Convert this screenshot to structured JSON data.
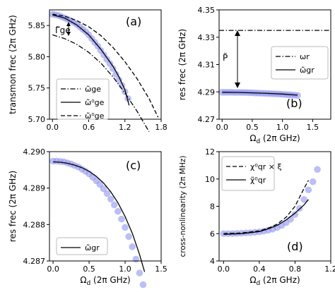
{
  "chart_data": [
    {
      "id": "a",
      "type": "line",
      "panel_label": "(a)",
      "ylabel": "transmon frec (2π GHz)",
      "xlabel": "",
      "xlim": [
        -0.05,
        1.8
      ],
      "ylim": [
        5.7,
        5.875
      ],
      "xticks": [
        0.0,
        0.6,
        1.2,
        1.8
      ],
      "xtick_labels": [
        "0.0",
        "0.6",
        "1.2",
        "1.8"
      ],
      "yticks": [
        5.7,
        5.75,
        5.8,
        5.85
      ],
      "ytick_labels": [
        "5.70",
        "5.75",
        "5.80",
        "5.85"
      ],
      "legend_position": "lower-left",
      "annotation": "Γ̃ge",
      "series": [
        {
          "name": "ω̃ge",
          "style": "dashdot",
          "x": [
            0.0,
            0.2,
            0.4,
            0.6,
            0.8,
            1.0,
            1.2,
            1.4,
            1.6
          ],
          "y": [
            5.835,
            5.829,
            5.82,
            5.807,
            5.79,
            5.768,
            5.742,
            5.713,
            5.68
          ]
        },
        {
          "name": "ω̃⁰ge",
          "style": "solid",
          "x": [
            0.0,
            0.2,
            0.4,
            0.6,
            0.8,
            1.0,
            1.1,
            1.2,
            1.27
          ],
          "y": [
            5.867,
            5.862,
            5.851,
            5.835,
            5.812,
            5.785,
            5.768,
            5.747,
            5.722
          ]
        },
        {
          "name": "ω̃⁰ge",
          "style": "dashed",
          "x": [
            0.0,
            0.2,
            0.4,
            0.6,
            0.8,
            1.0,
            1.2,
            1.4,
            1.6,
            1.75
          ],
          "y": [
            5.868,
            5.865,
            5.858,
            5.848,
            5.834,
            5.815,
            5.792,
            5.765,
            5.733,
            5.703
          ]
        },
        {
          "name": "",
          "style": "markers",
          "x": [
            0.0,
            0.05,
            0.1,
            0.15,
            0.2,
            0.25,
            0.3,
            0.35,
            0.4,
            0.45,
            0.5,
            0.55,
            0.6,
            0.65,
            0.7,
            0.75,
            0.8,
            0.85,
            0.9,
            0.95,
            1.0,
            1.05,
            1.1,
            1.15,
            1.2,
            1.25
          ],
          "y": [
            5.868,
            5.867,
            5.866,
            5.864,
            5.862,
            5.86,
            5.858,
            5.855,
            5.852,
            5.848,
            5.844,
            5.84,
            5.835,
            5.829,
            5.823,
            5.817,
            5.81,
            5.803,
            5.796,
            5.789,
            5.781,
            5.772,
            5.763,
            5.754,
            5.744,
            5.733
          ]
        }
      ]
    },
    {
      "id": "b",
      "type": "line",
      "panel_label": "(b)",
      "ylabel": "res frec (2π GHz)",
      "xlabel": "Ω",
      "xlabel_sub": "d",
      "xlabel_unit": " (2π GHz)",
      "xlim": [
        -0.05,
        1.8
      ],
      "ylim": [
        4.27,
        4.35
      ],
      "xticks": [
        0.0,
        0.5,
        1.0,
        1.5
      ],
      "xtick_labels": [
        "0.0",
        "0.5",
        "1.0",
        "1.5"
      ],
      "yticks": [
        4.27,
        4.29,
        4.31,
        4.33,
        4.35
      ],
      "ytick_labels": [
        "4.27",
        "4.29",
        "4.31",
        "4.33",
        "4.35"
      ],
      "legend_position": "right",
      "annotation": "P̃",
      "series": [
        {
          "name": "ωr",
          "style": "dashdot",
          "x": [
            -0.05,
            1.8
          ],
          "y": [
            4.335,
            4.335
          ]
        },
        {
          "name": "ω̃gr",
          "style": "solid",
          "x": [
            0.0,
            0.25,
            0.5,
            0.75,
            1.0,
            1.25
          ],
          "y": [
            4.2897,
            4.2896,
            4.2893,
            4.2889,
            4.2884,
            4.2876
          ]
        },
        {
          "name": "",
          "style": "markers",
          "x": [
            0.0,
            0.05,
            0.1,
            0.15,
            0.2,
            0.25,
            0.3,
            0.35,
            0.4,
            0.45,
            0.5,
            0.55,
            0.6,
            0.65,
            0.7,
            0.75,
            0.8,
            0.85,
            0.9,
            0.95,
            1.0,
            1.05,
            1.1,
            1.15,
            1.2,
            1.25
          ],
          "y": [
            4.2897,
            4.2897,
            4.2897,
            4.2897,
            4.2896,
            4.2896,
            4.2896,
            4.2895,
            4.2895,
            4.2894,
            4.2893,
            4.2892,
            4.2891,
            4.289,
            4.2889,
            4.2888,
            4.2887,
            4.2886,
            4.2885,
            4.2884,
            4.2882,
            4.2881,
            4.2879,
            4.2878,
            4.2876,
            4.2874
          ]
        }
      ]
    },
    {
      "id": "c",
      "type": "line",
      "panel_label": "(c)",
      "ylabel": "res frec (2π GHz)",
      "xlabel": "Ω",
      "xlabel_sub": "d",
      "xlabel_unit": " (2π GHz)",
      "xlim": [
        -0.05,
        1.5
      ],
      "ylim": [
        4.287,
        4.29
      ],
      "xticks": [
        0.0,
        0.5,
        1.0,
        1.5
      ],
      "xtick_labels": [
        "0.0",
        "0.5",
        "1.0",
        "1.5"
      ],
      "yticks": [
        4.287,
        4.288,
        4.289,
        4.29
      ],
      "ytick_labels": [
        "4.287",
        "4.288",
        "4.289",
        "4.290"
      ],
      "legend_position": "lower-left",
      "series": [
        {
          "name": "ω̃gr",
          "style": "solid",
          "x": [
            0.0,
            0.1,
            0.2,
            0.3,
            0.4,
            0.5,
            0.6,
            0.7,
            0.8,
            0.9,
            1.0,
            1.1,
            1.2,
            1.27
          ],
          "y": [
            4.28972,
            4.28971,
            4.28968,
            4.28963,
            4.28956,
            4.28946,
            4.28932,
            4.28914,
            4.2889,
            4.2886,
            4.28822,
            4.28776,
            4.28718,
            4.2867
          ]
        },
        {
          "name": "",
          "style": "markers",
          "x": [
            0.0,
            0.05,
            0.1,
            0.15,
            0.2,
            0.25,
            0.3,
            0.35,
            0.4,
            0.45,
            0.5,
            0.55,
            0.6,
            0.65,
            0.7,
            0.75,
            0.8,
            0.85,
            0.9,
            0.95,
            1.0,
            1.05,
            1.1,
            1.15,
            1.2,
            1.25
          ],
          "y": [
            4.28974,
            4.28974,
            4.28973,
            4.28972,
            4.28969,
            4.28966,
            4.28962,
            4.28958,
            4.28952,
            4.28946,
            4.28939,
            4.2893,
            4.2892,
            4.2891,
            4.28898,
            4.28885,
            4.2887,
            4.28854,
            4.28836,
            4.28815,
            4.28792,
            4.28767,
            4.28739,
            4.28705,
            4.28667,
            4.28635
          ]
        }
      ]
    },
    {
      "id": "d",
      "type": "line",
      "panel_label": "(d)",
      "ylabel": "cross-nonlinearity (2π MHz)",
      "xlabel": "Ω",
      "xlabel_sub": "d",
      "xlabel_unit": " (2π GHz)",
      "xlim": [
        -0.05,
        1.2
      ],
      "ylim": [
        4,
        12
      ],
      "xticks": [
        0.0,
        0.4,
        0.8,
        1.2
      ],
      "xtick_labels": [
        "0.0",
        "0.4",
        "0.8",
        "1.2"
      ],
      "yticks": [
        4,
        6,
        8,
        10,
        12
      ],
      "ytick_labels": [
        "4",
        "6",
        "8",
        "10",
        "12"
      ],
      "legend_position": "top-left",
      "series": [
        {
          "name": "χ⁰qr × ξ",
          "style": "dashed",
          "x": [
            0.0,
            0.2,
            0.4,
            0.5,
            0.6,
            0.7,
            0.8,
            0.9,
            0.95
          ],
          "y": [
            6.0,
            6.05,
            6.2,
            6.4,
            6.7,
            7.2,
            8.0,
            9.3,
            9.9
          ]
        },
        {
          "name": "χ̃⁰qr",
          "style": "solid",
          "x": [
            0.0,
            0.2,
            0.4,
            0.5,
            0.6,
            0.7,
            0.8,
            0.9,
            0.95
          ],
          "y": [
            5.95,
            6.0,
            6.15,
            6.35,
            6.6,
            7.0,
            7.5,
            8.1,
            8.5
          ]
        },
        {
          "name": "",
          "style": "markers",
          "x": [
            0.0,
            0.05,
            0.1,
            0.15,
            0.2,
            0.25,
            0.3,
            0.35,
            0.4,
            0.45,
            0.5,
            0.55,
            0.6,
            0.65,
            0.7,
            0.75,
            0.8,
            0.85,
            0.9,
            0.95,
            1.0,
            1.05
          ],
          "y": [
            6.0,
            6.0,
            6.0,
            6.02,
            6.03,
            6.05,
            6.07,
            6.1,
            6.13,
            6.18,
            6.25,
            6.33,
            6.45,
            6.6,
            6.8,
            7.05,
            7.4,
            7.85,
            8.5,
            9.2,
            9.8,
            10.7
          ]
        }
      ]
    }
  ]
}
